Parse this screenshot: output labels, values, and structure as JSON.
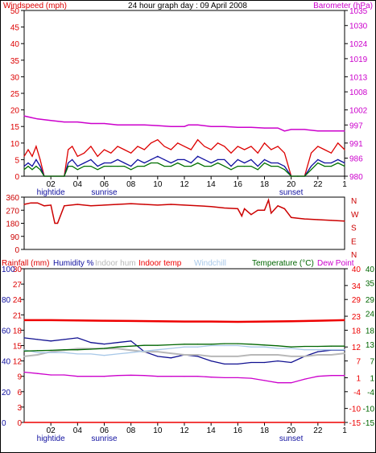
{
  "header": {
    "left_title": "Windspeed (mph)",
    "center_title": "24 hour graph day : 09 April 2008",
    "right_title": "Barometer (hPa)"
  },
  "colors": {
    "frame": "#000000",
    "gust": "#dd0000",
    "wind": "#1010a0",
    "wind_avg": "#007000",
    "baro": "#cc00cc",
    "wind_dir": "#cc0000",
    "humidity": "#101090",
    "indoor_hum": "#b8b8b8",
    "indoor_temp": "#ee0000",
    "windchill": "#a8c8e8",
    "temperature": "#006600",
    "dew_point": "#cc00cc"
  },
  "x_ticks": [
    "02",
    "04",
    "06",
    "08",
    "10",
    "12",
    "14",
    "16",
    "18",
    "20",
    "22",
    "1"
  ],
  "events": [
    {
      "label": "hightide",
      "hour": 2
    },
    {
      "label": "sunrise",
      "hour": 6
    },
    {
      "label": "sunset",
      "hour": 20
    }
  ],
  "panel2_labels": {
    "compass": [
      "N",
      "W",
      "S",
      "E",
      "N"
    ]
  },
  "panel3_labels": {
    "rainfall": "Rainfall (mm)",
    "humidity": "Humidity %",
    "indoor_hum": "Indoor hum",
    "indoor_temp": "Indoor temp",
    "windchill": "Windchill",
    "temperature": "Temperature (°C)",
    "dew_point": "Dew Point"
  },
  "chart_data": [
    {
      "type": "line",
      "title": "24 hour graph day : 09 April 2008",
      "x_range_hours": [
        0,
        24
      ],
      "y_left_label": "Windspeed (mph)",
      "y_left_ticks": [
        0,
        5,
        10,
        15,
        20,
        25,
        30,
        35,
        40,
        45,
        50
      ],
      "y_left_range": [
        0,
        50
      ],
      "y_right_label": "Barometer (hPa)",
      "y_right_ticks": [
        980,
        986,
        991,
        997,
        1002,
        1008,
        1013,
        1019,
        1024,
        1030,
        1035
      ],
      "y_right_range": [
        980,
        1035
      ],
      "series": [
        {
          "name": "Windspeed gust",
          "axis": "left",
          "x": [
            0,
            0.3,
            0.6,
            0.9,
            1.2,
            1.5,
            3,
            3.3,
            3.6,
            4,
            4.5,
            5,
            5.5,
            6,
            6.5,
            7,
            7.5,
            8,
            8.5,
            9,
            9.5,
            10,
            10.5,
            11,
            11.5,
            12,
            12.5,
            13,
            13.5,
            14,
            14.5,
            15,
            15.5,
            16,
            16.5,
            17,
            17.5,
            18,
            18.5,
            19,
            19.5,
            20,
            20.5,
            21,
            21.5,
            22,
            22.5,
            23,
            23.5,
            24
          ],
          "y": [
            6,
            8,
            6,
            9,
            5,
            0,
            0,
            8,
            9,
            6,
            7,
            9,
            6,
            8,
            7,
            9,
            8,
            7,
            9,
            8,
            10,
            11,
            9,
            8,
            10,
            9,
            8,
            11,
            9,
            8,
            10,
            9,
            7,
            9,
            8,
            9,
            7,
            10,
            8,
            9,
            7,
            0,
            0,
            0,
            7,
            9,
            8,
            7,
            10,
            8
          ]
        },
        {
          "name": "Windspeed",
          "axis": "left",
          "x": [
            0,
            0.3,
            0.6,
            0.9,
            1.2,
            1.5,
            3,
            3.3,
            3.6,
            4,
            4.5,
            5,
            5.5,
            6,
            6.5,
            7,
            7.5,
            8,
            8.5,
            9,
            9.5,
            10,
            10.5,
            11,
            11.5,
            12,
            12.5,
            13,
            13.5,
            14,
            14.5,
            15,
            15.5,
            16,
            16.5,
            17,
            17.5,
            18,
            18.5,
            19,
            19.5,
            20,
            20.5,
            21,
            21.5,
            22,
            22.5,
            23,
            23.5,
            24
          ],
          "y": [
            3,
            4,
            3,
            5,
            3,
            0,
            0,
            4,
            5,
            3,
            4,
            5,
            3,
            4,
            4,
            5,
            4,
            3,
            5,
            4,
            5,
            6,
            5,
            4,
            5,
            5,
            4,
            6,
            5,
            4,
            5,
            5,
            3,
            5,
            4,
            5,
            3,
            5,
            4,
            4,
            3,
            0,
            0,
            0,
            3,
            5,
            4,
            4,
            5,
            4
          ]
        },
        {
          "name": "Windspeed avg",
          "axis": "left",
          "x": [
            0,
            0.3,
            0.6,
            0.9,
            1.2,
            1.5,
            3,
            3.3,
            3.6,
            4,
            4.5,
            5,
            5.5,
            6,
            6.5,
            7,
            7.5,
            8,
            8.5,
            9,
            9.5,
            10,
            10.5,
            11,
            11.5,
            12,
            12.5,
            13,
            13.5,
            14,
            14.5,
            15,
            15.5,
            16,
            16.5,
            17,
            17.5,
            18,
            18.5,
            19,
            19.5,
            20,
            20.5,
            21,
            21.5,
            22,
            22.5,
            23,
            23.5,
            24
          ],
          "y": [
            2,
            3,
            2,
            3,
            2,
            0,
            0,
            3,
            3,
            2,
            3,
            3,
            2,
            3,
            3,
            3,
            3,
            2,
            3,
            3,
            4,
            4,
            3,
            3,
            4,
            3,
            3,
            4,
            3,
            3,
            4,
            3,
            2,
            3,
            3,
            3,
            2,
            4,
            3,
            3,
            2,
            0,
            0,
            0,
            2,
            4,
            3,
            3,
            4,
            3
          ]
        },
        {
          "name": "Barometer",
          "axis": "right",
          "x": [
            0,
            0.5,
            1,
            2,
            3,
            4,
            5,
            6,
            7,
            8,
            9,
            10,
            11,
            12,
            12.3,
            13,
            14,
            15,
            16,
            17,
            18,
            19,
            19.5,
            20,
            21,
            22,
            23,
            24
          ],
          "y": [
            1000,
            999.5,
            999,
            998.5,
            998,
            998,
            997.5,
            997.5,
            997,
            997,
            997,
            996.8,
            996.5,
            996.5,
            997,
            997,
            996.5,
            996.5,
            996.2,
            996.2,
            996,
            996,
            995,
            995.5,
            995.5,
            995,
            995,
            995
          ]
        }
      ]
    },
    {
      "type": "line",
      "title": "",
      "x_range_hours": [
        0,
        24
      ],
      "y_left_ticks": [
        0,
        90,
        180,
        270,
        360
      ],
      "y_left_range": [
        0,
        360
      ],
      "y_right_ticks": [
        "N",
        "W",
        "S",
        "E",
        "N"
      ],
      "series": [
        {
          "name": "Wind direction",
          "axis": "left",
          "x": [
            0,
            0.5,
            1,
            1.5,
            2,
            2.3,
            2.5,
            3,
            4,
            5,
            6,
            7,
            8,
            9,
            10,
            11,
            12,
            13,
            14,
            15,
            16,
            16.3,
            16.5,
            17,
            17.5,
            18,
            18.3,
            18.5,
            19,
            19.5,
            20,
            20.5,
            21,
            22,
            23,
            24
          ],
          "y": [
            310,
            320,
            320,
            300,
            305,
            180,
            180,
            300,
            310,
            300,
            305,
            310,
            315,
            310,
            305,
            310,
            305,
            300,
            295,
            285,
            280,
            230,
            280,
            240,
            270,
            270,
            340,
            250,
            300,
            280,
            220,
            215,
            210,
            205,
            200,
            195
          ]
        }
      ]
    },
    {
      "type": "line",
      "title": "",
      "x_range_hours": [
        0,
        24
      ],
      "y_left_label": "Rainfall (mm)",
      "y_left_ticks": [
        0,
        3,
        6,
        9,
        12,
        15,
        18,
        21,
        24,
        27,
        30
      ],
      "y_left_range": [
        0,
        30
      ],
      "y_left2_label": "Humidity %",
      "y_left2_ticks": [
        0,
        20,
        40,
        60,
        80,
        100
      ],
      "y_left2_range": [
        0,
        100
      ],
      "y_right_label": "Indoor temp",
      "y_right_ticks": [
        -15,
        -10,
        -4,
        1,
        7,
        12,
        18,
        23,
        29,
        34,
        40
      ],
      "y_right_range": [
        -15,
        40
      ],
      "y_right2_label": "Temperature (°C)",
      "y_right2_ticks": [
        -15,
        -10,
        -4,
        1,
        7,
        13,
        18,
        24,
        29,
        35,
        40
      ],
      "y_right2_range": [
        -15,
        40
      ],
      "series": [
        {
          "name": "Rainfall (mm)",
          "axis": "left",
          "x": [
            0,
            24
          ],
          "y": [
            0,
            0
          ]
        },
        {
          "name": "Humidity %",
          "axis": "left2",
          "x": [
            0,
            1,
            2,
            3,
            4,
            5,
            6,
            7,
            8,
            9,
            10,
            11,
            12,
            13,
            14,
            15,
            16,
            17,
            18,
            19,
            20,
            21,
            22,
            23,
            24
          ],
          "y": [
            55,
            54,
            53,
            54,
            55,
            52,
            51,
            52,
            53,
            46,
            43,
            42,
            44,
            43,
            40,
            38,
            38,
            39,
            39,
            40,
            39,
            43,
            46,
            47,
            47
          ]
        },
        {
          "name": "Indoor hum",
          "axis": "left2",
          "x": [
            0,
            1,
            2,
            3,
            4,
            5,
            6,
            7,
            8,
            9,
            10,
            11,
            12,
            13,
            14,
            15,
            16,
            17,
            18,
            19,
            20,
            21,
            22,
            23,
            24
          ],
          "y": [
            43,
            44,
            46,
            47,
            48,
            48,
            48,
            48,
            47,
            46,
            46,
            45,
            44,
            44,
            43,
            43,
            43,
            44,
            44,
            44,
            43,
            43,
            44,
            44,
            45
          ]
        },
        {
          "name": "Indoor temp",
          "axis": "right",
          "x": [
            0,
            2,
            4,
            6,
            8,
            10,
            12,
            14,
            16,
            18,
            20,
            22,
            24
          ],
          "y": [
            21.6,
            21.6,
            21.5,
            21.4,
            21.3,
            21.2,
            21.1,
            21.1,
            21.0,
            21.1,
            21.2,
            21.4,
            21.6
          ]
        },
        {
          "name": "Windchill",
          "axis": "right2",
          "x": [
            0,
            1,
            2,
            3,
            4,
            5,
            6,
            7,
            8,
            9,
            10,
            11,
            12,
            13,
            14,
            15,
            16,
            17,
            18,
            19,
            20,
            21,
            22,
            23,
            24
          ],
          "y": [
            11,
            10,
            10,
            10,
            9.5,
            9.5,
            9,
            9.5,
            10,
            10.5,
            11,
            11.5,
            12,
            12,
            12.5,
            12.5,
            12.5,
            12,
            12,
            11.5,
            11.5,
            11,
            11,
            11,
            11
          ]
        },
        {
          "name": "Temperature (°C)",
          "axis": "right2",
          "x": [
            0,
            1,
            2,
            3,
            4,
            5,
            6,
            7,
            8,
            9,
            10,
            11,
            12,
            13,
            14,
            15,
            16,
            17,
            18,
            19,
            20,
            21,
            22,
            23,
            24
          ],
          "y": [
            10.5,
            10.7,
            10.8,
            11,
            11,
            11.2,
            11.5,
            12,
            12.3,
            12.6,
            12.6,
            12.8,
            13,
            13,
            13,
            13.2,
            13.2,
            13,
            12.7,
            12.4,
            12,
            12.2,
            12.2,
            12.3,
            12.3
          ]
        },
        {
          "name": "Dew Point",
          "axis": "right2",
          "x": [
            0,
            1,
            2,
            3,
            4,
            5,
            6,
            7,
            8,
            9,
            10,
            11,
            12,
            13,
            14,
            15,
            16,
            17,
            18,
            19,
            20,
            21,
            22,
            23,
            24
          ],
          "y": [
            3,
            2.5,
            2,
            2,
            1.5,
            1.5,
            1.5,
            1.8,
            1.9,
            1.8,
            1.5,
            1.5,
            1.5,
            1.5,
            1.2,
            1,
            1,
            0.8,
            0,
            -0.8,
            -0.8,
            0.5,
            1.5,
            1.8,
            1.8
          ]
        }
      ]
    }
  ]
}
